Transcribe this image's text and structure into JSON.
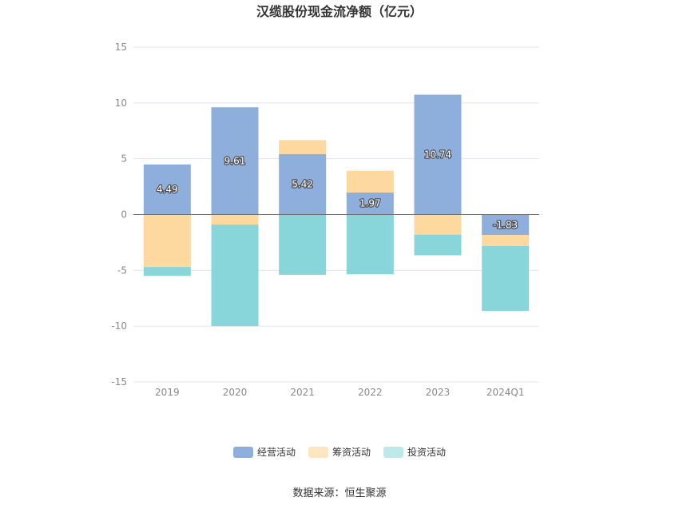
{
  "chart_data": {
    "type": "bar",
    "stacked": true,
    "title": "汉缆股份现金流净额（亿元）",
    "categories": [
      "2019",
      "2020",
      "2021",
      "2022",
      "2023",
      "2024Q1"
    ],
    "ylim": [
      -15,
      15
    ],
    "yticks": [
      15,
      10,
      5,
      0,
      -5,
      -10,
      -15
    ],
    "grid": true,
    "legend_position": "bottom",
    "series": [
      {
        "name": "经营活动",
        "color": "#8eaedb",
        "values": [
          4.49,
          9.61,
          5.42,
          1.97,
          10.74,
          -1.83
        ],
        "show_labels": true
      },
      {
        "name": "筹资活动",
        "color": "#fdd9a0",
        "values": [
          -4.7,
          -0.9,
          1.25,
          1.95,
          -1.8,
          -1.0
        ],
        "show_labels": false
      },
      {
        "name": "投资活动",
        "color": "#88d6d9",
        "values": [
          -0.8,
          -9.1,
          -5.4,
          -5.35,
          -1.85,
          -5.8
        ],
        "show_labels": false
      }
    ]
  },
  "legend_colors": [
    "#8eaedb",
    "#fde7c3",
    "#bde9ea"
  ],
  "source": "数据来源：恒生聚源"
}
